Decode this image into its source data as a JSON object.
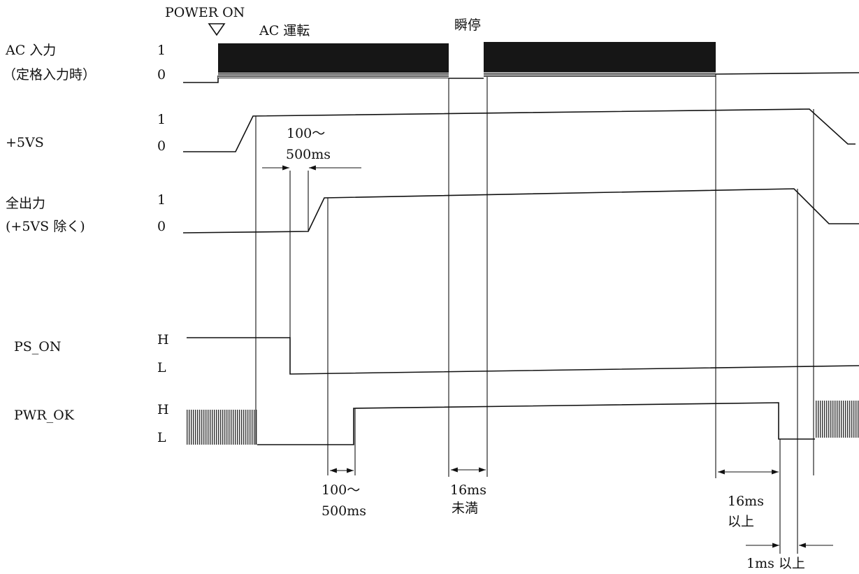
{
  "annotations": {
    "power_on": "POWER ON",
    "ac_run": "AC 運転",
    "momentary_outage": "瞬停"
  },
  "signals": {
    "ac_input": {
      "label_line1": "AC 入力",
      "label_line2": "（定格入力時）",
      "level_high": "1",
      "level_low": "0"
    },
    "plus5vs": {
      "label_line1": "+5VS",
      "level_high": "1",
      "level_low": "0"
    },
    "all_outputs": {
      "label_line1": "全出力",
      "label_line2": "(+5VS 除く)",
      "level_high": "1",
      "level_low": "0"
    },
    "ps_on": {
      "label_line1": "PS_ON",
      "level_high": "H",
      "level_low": "L"
    },
    "pwr_ok": {
      "label_line1": "PWR_OK",
      "level_high": "H",
      "level_low": "L"
    }
  },
  "timings": {
    "t1": {
      "line1": "100～",
      "line2": "500ms"
    },
    "t2": {
      "line1": "100～",
      "line2": "500ms"
    },
    "t3": {
      "line1": "16ms",
      "line2": "未満"
    },
    "t4": {
      "line1": "16ms",
      "line2": "以上"
    },
    "t5": {
      "line1": "1ms 以上"
    }
  }
}
